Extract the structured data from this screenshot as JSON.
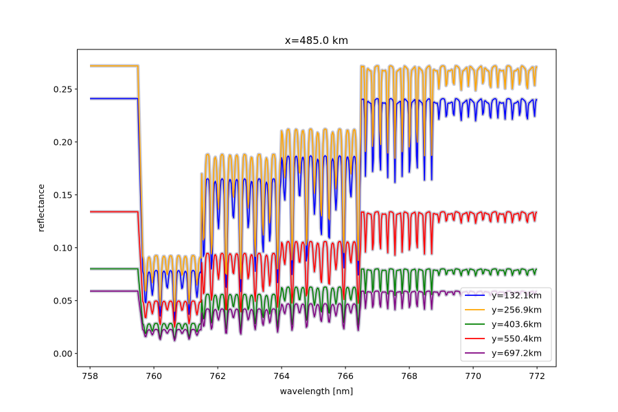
{
  "chart_data": {
    "type": "line",
    "title": "x=485.0 km",
    "xlabel": "wavelength [nm]",
    "ylabel": "reflectance",
    "xlim": [
      757.6,
      772.6
    ],
    "ylim": [
      -0.0125,
      0.2875
    ],
    "x_ticks": [
      758,
      760,
      762,
      764,
      766,
      768,
      770,
      772
    ],
    "x_tick_labels": [
      "758",
      "760",
      "762",
      "764",
      "766",
      "768",
      "770",
      "772"
    ],
    "y_ticks": [
      0.0,
      0.05,
      0.1,
      0.15,
      0.2,
      0.25
    ],
    "y_tick_labels": [
      "0.00",
      "0.05",
      "0.10",
      "0.15",
      "0.20",
      "0.25"
    ],
    "grid": false,
    "legend_position": "lower right",
    "uncertainty_band_color": "#c8c8d4",
    "x_range": [
      758.0,
      772.0
    ],
    "absorption_band": [
      759.5,
      772.0
    ],
    "series": [
      {
        "name": "y=132.1km",
        "color": "#0000ff",
        "continuum": 0.241
      },
      {
        "name": "y=256.9km",
        "color": "#ffa500",
        "continuum": 0.272
      },
      {
        "name": "y=403.6km",
        "color": "#008000",
        "continuum": 0.08
      },
      {
        "name": "y=550.4km",
        "color": "#ff0000",
        "continuum": 0.134
      },
      {
        "name": "y=697.2km",
        "color": "#800080",
        "continuum": 0.059
      }
    ]
  }
}
